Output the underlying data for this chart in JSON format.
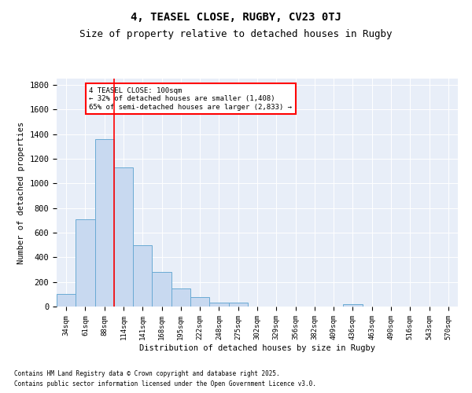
{
  "title": "4, TEASEL CLOSE, RUGBY, CV23 0TJ",
  "subtitle": "Size of property relative to detached houses in Rugby",
  "xlabel": "Distribution of detached houses by size in Rugby",
  "ylabel": "Number of detached properties",
  "bin_labels": [
    "34sqm",
    "61sqm",
    "88sqm",
    "114sqm",
    "141sqm",
    "168sqm",
    "195sqm",
    "222sqm",
    "248sqm",
    "275sqm",
    "302sqm",
    "329sqm",
    "356sqm",
    "382sqm",
    "409sqm",
    "436sqm",
    "463sqm",
    "490sqm",
    "516sqm",
    "543sqm",
    "570sqm"
  ],
  "bar_values": [
    105,
    705,
    1360,
    1130,
    500,
    280,
    145,
    75,
    35,
    35,
    0,
    0,
    0,
    0,
    0,
    20,
    0,
    0,
    0,
    0,
    0
  ],
  "bar_color": "#c8d9f0",
  "bar_edge_color": "#6aaad4",
  "vline_color": "red",
  "annotation_text": "4 TEASEL CLOSE: 100sqm\n← 32% of detached houses are smaller (1,408)\n65% of semi-detached houses are larger (2,833) →",
  "annotation_box_color": "white",
  "annotation_box_edge_color": "red",
  "ylim": [
    0,
    1850
  ],
  "yticks": [
    0,
    200,
    400,
    600,
    800,
    1000,
    1200,
    1400,
    1600,
    1800
  ],
  "bg_color": "#e8eef8",
  "footer1": "Contains HM Land Registry data © Crown copyright and database right 2025.",
  "footer2": "Contains public sector information licensed under the Open Government Licence v3.0.",
  "title_fontsize": 10,
  "subtitle_fontsize": 9
}
